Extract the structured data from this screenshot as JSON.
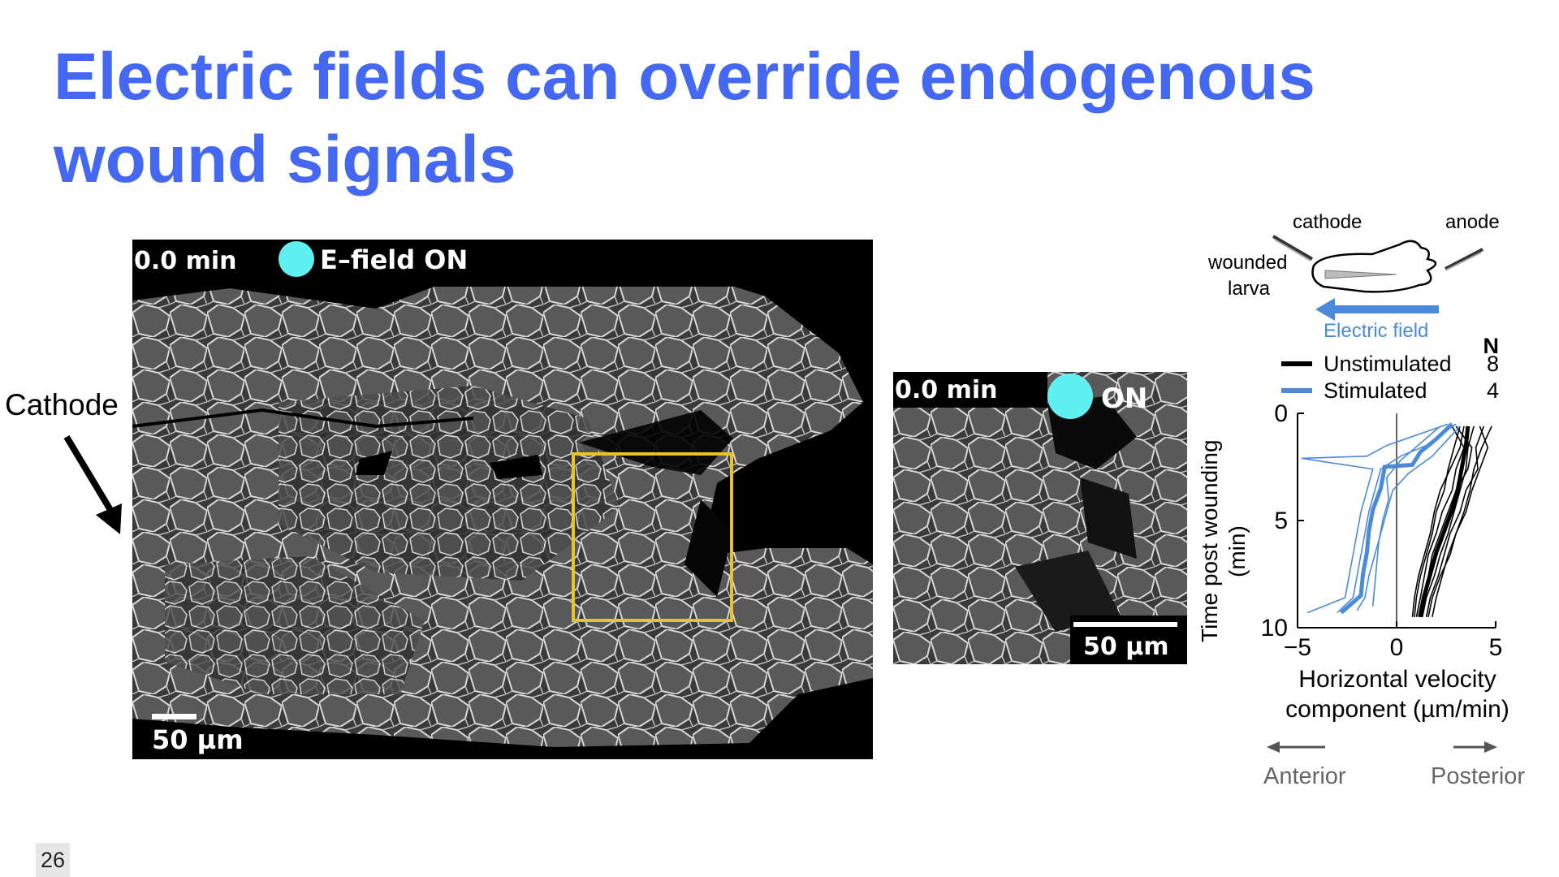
{
  "slide": {
    "title_line1": "Electric fields can override endogenous",
    "title_line2": "wound signals",
    "page_number": "26"
  },
  "main_image": {
    "time": "0.0 min",
    "field_label": "E–field ON",
    "scale_bar": "50 µm",
    "indicator_color": "#5ff0f2",
    "roi_color": "#e8c22e"
  },
  "inset_image": {
    "time": "0.0 min",
    "field_label": "ON",
    "scale_bar": "50 µm"
  },
  "cathode_label": "Cathode",
  "schematic": {
    "cathode": "cathode",
    "anode": "anode",
    "larva_line1": "wounded",
    "larva_line2": "larva",
    "field_label": "Electric field",
    "field_color": "#4a8ad8"
  },
  "chart_data": {
    "type": "line",
    "xlabel_line1": "Horizontal velocity",
    "xlabel_line2": "component (µm/min)",
    "ylabel_line1": "Time post wounding",
    "ylabel_line2": "(min)",
    "xlim": [
      -5,
      5
    ],
    "ylim": [
      0,
      10
    ],
    "y_inverted": true,
    "xticks": [
      "-5",
      "0",
      "5"
    ],
    "yticks": [
      "0",
      "5",
      "10"
    ],
    "legend_header": "N",
    "legend": [
      {
        "name": "Unstimulated",
        "n": "8",
        "color": "#000000"
      },
      {
        "name": "Stimulated",
        "n": "4",
        "color": "#4a8ad8"
      }
    ],
    "series": [
      {
        "name": "Unstimulated",
        "color": "#000000",
        "mean": [
          [
            3.6,
            0.6
          ],
          [
            3.5,
            1.5
          ],
          [
            3.3,
            2.5
          ],
          [
            3.1,
            3.5
          ],
          [
            2.8,
            4.5
          ],
          [
            2.4,
            5.5
          ],
          [
            2.0,
            6.5
          ],
          [
            1.7,
            7.5
          ],
          [
            1.4,
            8.5
          ],
          [
            1.2,
            9.5
          ]
        ],
        "traces": [
          [
            [
              3.0,
              0.6
            ],
            [
              3.8,
              1.6
            ],
            [
              3.6,
              2.6
            ],
            [
              3.0,
              3.6
            ],
            [
              2.6,
              4.6
            ],
            [
              2.2,
              5.6
            ],
            [
              1.8,
              6.6
            ],
            [
              1.6,
              7.6
            ],
            [
              1.3,
              8.6
            ],
            [
              1.1,
              9.5
            ]
          ],
          [
            [
              4.4,
              0.6
            ],
            [
              4.0,
              1.6
            ],
            [
              4.1,
              2.6
            ],
            [
              3.5,
              3.6
            ],
            [
              3.2,
              4.6
            ],
            [
              2.7,
              5.6
            ],
            [
              2.4,
              6.6
            ],
            [
              2.1,
              7.6
            ],
            [
              1.7,
              8.6
            ],
            [
              1.5,
              9.5
            ]
          ],
          [
            [
              3.4,
              0.6
            ],
            [
              3.2,
              1.6
            ],
            [
              2.7,
              2.6
            ],
            [
              2.2,
              3.6
            ],
            [
              1.9,
              4.6
            ],
            [
              1.7,
              5.6
            ],
            [
              1.4,
              6.6
            ],
            [
              1.1,
              7.6
            ],
            [
              0.9,
              8.6
            ],
            [
              0.8,
              9.5
            ]
          ],
          [
            [
              4.8,
              0.6
            ],
            [
              4.3,
              1.6
            ],
            [
              3.9,
              2.6
            ],
            [
              3.7,
              3.6
            ],
            [
              3.4,
              4.6
            ],
            [
              3.0,
              5.6
            ],
            [
              2.6,
              6.6
            ],
            [
              2.3,
              7.6
            ],
            [
              2.0,
              8.6
            ],
            [
              1.8,
              9.5
            ]
          ],
          [
            [
              2.8,
              0.6
            ],
            [
              3.4,
              1.6
            ],
            [
              3.0,
              2.6
            ],
            [
              2.8,
              3.6
            ],
            [
              2.3,
              4.6
            ],
            [
              2.0,
              5.6
            ],
            [
              1.6,
              6.6
            ],
            [
              1.4,
              7.6
            ],
            [
              1.2,
              8.6
            ],
            [
              1.0,
              9.5
            ]
          ],
          [
            [
              3.9,
              0.6
            ],
            [
              3.6,
              1.6
            ],
            [
              3.5,
              2.6
            ],
            [
              3.2,
              3.6
            ],
            [
              2.9,
              4.6
            ],
            [
              2.6,
              5.6
            ],
            [
              2.2,
              6.6
            ],
            [
              1.9,
              7.6
            ],
            [
              1.5,
              8.6
            ],
            [
              1.3,
              9.5
            ]
          ],
          [
            [
              4.2,
              0.6
            ],
            [
              4.6,
              1.6
            ],
            [
              4.2,
              2.6
            ],
            [
              3.8,
              3.6
            ],
            [
              3.5,
              4.6
            ],
            [
              3.0,
              5.6
            ],
            [
              2.7,
              6.6
            ],
            [
              2.2,
              7.6
            ],
            [
              1.8,
              8.6
            ],
            [
              1.6,
              9.5
            ]
          ],
          [
            [
              3.2,
              0.6
            ],
            [
              2.9,
              1.6
            ],
            [
              2.6,
              2.6
            ],
            [
              2.4,
              3.6
            ],
            [
              2.0,
              4.6
            ],
            [
              1.8,
              5.6
            ],
            [
              1.5,
              6.6
            ],
            [
              1.2,
              7.6
            ],
            [
              1.0,
              8.6
            ],
            [
              0.9,
              9.5
            ]
          ]
        ]
      },
      {
        "name": "Stimulated",
        "color": "#4a8ad8",
        "mean": [
          [
            2.8,
            0.5
          ],
          [
            2.0,
            1.2
          ],
          [
            1.2,
            1.8
          ],
          [
            0.8,
            2.4
          ],
          [
            -0.6,
            2.5
          ],
          [
            -0.8,
            3.5
          ],
          [
            -1.2,
            4.5
          ],
          [
            -1.4,
            5.5
          ],
          [
            -1.5,
            6.5
          ],
          [
            -1.7,
            7.5
          ],
          [
            -1.8,
            8.5
          ],
          [
            -2.8,
            9.3
          ]
        ],
        "traces": [
          [
            [
              3.0,
              0.5
            ],
            [
              2.2,
              1.0
            ],
            [
              1.5,
              1.5
            ],
            [
              0.2,
              2.0
            ],
            [
              -0.8,
              2.6
            ],
            [
              -1.1,
              3.6
            ],
            [
              -1.4,
              4.6
            ],
            [
              -1.6,
              5.6
            ],
            [
              -1.8,
              6.6
            ],
            [
              -2.0,
              7.6
            ],
            [
              -2.2,
              8.6
            ],
            [
              -3.0,
              9.3
            ]
          ],
          [
            [
              2.6,
              0.5
            ],
            [
              -0.5,
              1.5
            ],
            [
              -1.5,
              2.0
            ],
            [
              -4.8,
              2.1
            ],
            [
              -1.2,
              2.6
            ],
            [
              -1.5,
              3.6
            ],
            [
              -1.8,
              4.6
            ],
            [
              -2.0,
              5.6
            ],
            [
              -2.2,
              6.6
            ],
            [
              -2.4,
              7.6
            ],
            [
              -2.6,
              8.6
            ],
            [
              -4.5,
              9.3
            ]
          ],
          [
            [
              2.2,
              0.6
            ],
            [
              1.2,
              1.4
            ],
            [
              0.2,
              2.2
            ],
            [
              -0.5,
              3.0
            ],
            [
              -0.4,
              4.0
            ],
            [
              -0.7,
              5.0
            ],
            [
              -0.9,
              6.0
            ],
            [
              -1.0,
              7.0
            ],
            [
              -1.1,
              8.0
            ],
            [
              -1.2,
              9.0
            ]
          ],
          [
            [
              3.2,
              0.6
            ],
            [
              2.5,
              1.3
            ],
            [
              1.8,
              2.0
            ],
            [
              0.6,
              2.8
            ],
            [
              -0.2,
              3.6
            ],
            [
              -0.5,
              4.6
            ],
            [
              -0.8,
              5.6
            ],
            [
              -1.1,
              6.6
            ],
            [
              -1.4,
              7.6
            ],
            [
              -1.6,
              8.6
            ],
            [
              -2.0,
              9.2
            ]
          ]
        ]
      }
    ],
    "direction_left": "Anterior",
    "direction_right": "Posterior"
  }
}
